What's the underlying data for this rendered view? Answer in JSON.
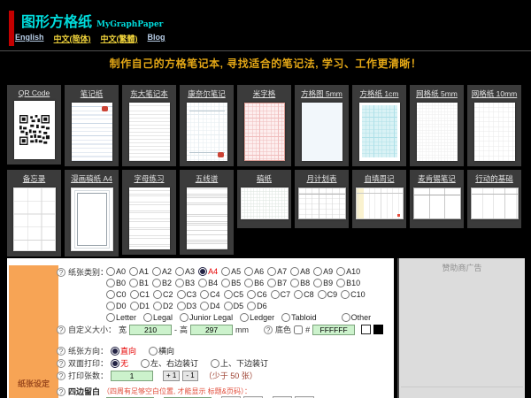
{
  "colors": {
    "accent_red": "#e60000",
    "banner_gold": "#e2a616",
    "sidebar_orange": "#f7a455",
    "link_blue": "#b9cfe8",
    "link_yellow": "#f2d53c",
    "input_green": "#ccf2cc"
  },
  "icons": {
    "help": "?"
  },
  "header": {
    "logo_cn": "图形方格纸",
    "logo_en": "MyGraphPaper",
    "nav": [
      {
        "id": "english",
        "label": "English",
        "tone": "blue"
      },
      {
        "id": "zh-cn",
        "label": "中文(简体)",
        "tone": "yellow"
      },
      {
        "id": "zh-tw",
        "label": "中文(繁體)",
        "tone": "yellow"
      },
      {
        "id": "blog",
        "label": "Blog",
        "tone": "blue"
      }
    ]
  },
  "banner": {
    "text": "制作自己的方格笔记本, 寻找适合的笔记法, 学习、工作更清晰！"
  },
  "gallery": {
    "row1": [
      {
        "id": "qr-code",
        "label": "QR Code",
        "type": "qrcode"
      },
      {
        "id": "note-paper",
        "label": "笔记纸",
        "type": "lined-stamp"
      },
      {
        "id": "todai-notebook",
        "label": "东大笔记本",
        "type": "lined2"
      },
      {
        "id": "cornell-notes",
        "label": "康奈尔笔记",
        "type": "cornell"
      },
      {
        "id": "mi-grid",
        "label": "米字格",
        "type": "redgrid"
      },
      {
        "id": "grid-5mm",
        "label": "方格图 5mm",
        "type": "bluegrid"
      },
      {
        "id": "grid-1cm",
        "label": "方格纸 1cm",
        "type": "cyangrid"
      },
      {
        "id": "mesh-5mm",
        "label": "网格纸 5mm",
        "type": "faint5"
      },
      {
        "id": "mesh-10mm",
        "label": "网格纸 10mm",
        "type": "faint10"
      }
    ],
    "row2": [
      {
        "id": "memo",
        "label": "备忘录",
        "type": "memo"
      },
      {
        "id": "manga-a4",
        "label": "漫画稿纸 A4",
        "type": "manga"
      },
      {
        "id": "letter-practice",
        "label": "字母练习",
        "type": "letters"
      },
      {
        "id": "music-staff",
        "label": "五线谱",
        "type": "staff"
      },
      {
        "id": "draft-paper",
        "label": "稿纸",
        "type": "draft",
        "landscape": true
      },
      {
        "id": "month-planner",
        "label": "月计划表",
        "type": "month",
        "landscape": true
      },
      {
        "id": "weekly-journal",
        "label": "自填周记",
        "type": "week",
        "landscape": true
      },
      {
        "id": "mckinsey-notes",
        "label": "麦肯锡笔记",
        "type": "mckinsey",
        "landscape": true
      },
      {
        "id": "action-basics",
        "label": "行动的基础",
        "type": "action",
        "landscape": true
      }
    ]
  },
  "form": {
    "sidebar_label": "纸张设定",
    "paper_type": {
      "label": "纸张类别：",
      "selected": "A4",
      "rows": [
        [
          "A0",
          "A1",
          "A2",
          "A3",
          "A4",
          "A5",
          "A6",
          "A7",
          "A8",
          "A9",
          "A10"
        ],
        [
          "B0",
          "B1",
          "B2",
          "B3",
          "B4",
          "B5",
          "B6",
          "B7",
          "B8",
          "B9",
          "B10"
        ],
        [
          "C0",
          "C1",
          "C2",
          "C3",
          "C4",
          "C5",
          "C6",
          "C7",
          "C8",
          "C9",
          "C10"
        ],
        [
          "D0",
          "D1",
          "D2",
          "D3",
          "D4",
          "D5",
          "D6"
        ],
        [
          "Letter",
          "Legal",
          "Junior Legal",
          "Ledger",
          "Tabloid",
          "Other"
        ]
      ]
    },
    "custom_size": {
      "label": "自定义大小：",
      "width_label": "宽",
      "width_value": "210",
      "separator": "-",
      "height_label": "高",
      "height_value": "297",
      "unit": "mm"
    },
    "bg_color": {
      "label": "底色",
      "hash": "#",
      "value": "FFFFFF"
    },
    "orientation": {
      "label": "纸张方向：",
      "group": "orientation",
      "selected": "portrait",
      "options": [
        {
          "id": "portrait",
          "label": "直向"
        },
        {
          "id": "landscape",
          "label": "横向"
        }
      ]
    },
    "duplex": {
      "label": "双面打印：",
      "group": "duplex",
      "selected": "none",
      "options": [
        {
          "id": "none",
          "label": "无"
        },
        {
          "id": "left-right",
          "label": "左、右边装订"
        },
        {
          "id": "top-bottom",
          "label": "上、下边装订"
        }
      ]
    },
    "copies": {
      "label": "打印张数：",
      "value": "1",
      "plus_label": "+ 1",
      "minus_label": "- 1",
      "note": "（少于 50 张）"
    },
    "margins": {
      "label": "四边留白",
      "note": "（四周有足够空白位置, 才能显示 标题&页码）："
    }
  },
  "ad": {
    "label": "赞助商广告"
  }
}
